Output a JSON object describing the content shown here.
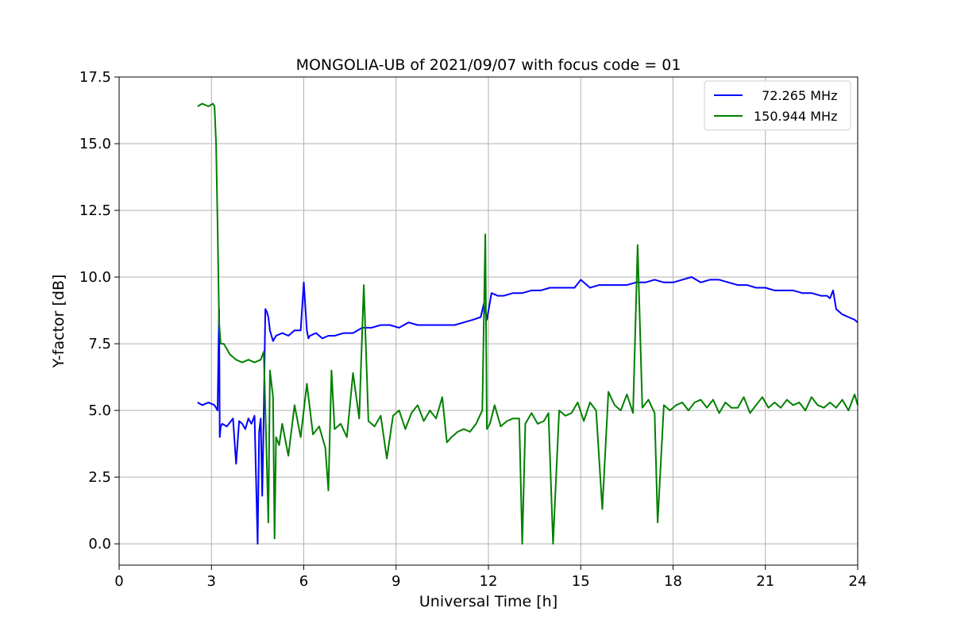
{
  "chart_data": {
    "type": "line",
    "title": "MONGOLIA-UB of 2021/09/07 with focus code = 01",
    "xlabel": "Universal Time [h]",
    "ylabel": "Y-factor [dB]",
    "xlim": [
      0,
      24
    ],
    "ylim": [
      -0.8,
      17.5
    ],
    "xticks": [
      0,
      3,
      6,
      9,
      12,
      15,
      18,
      21,
      24
    ],
    "xtick_labels": [
      "0",
      "3",
      "6",
      "9",
      "12",
      "15",
      "18",
      "21",
      "24"
    ],
    "yticks": [
      0,
      2.5,
      5,
      7.5,
      10,
      12.5,
      15,
      17.5
    ],
    "ytick_labels": [
      "0.0",
      "2.5",
      "5.0",
      "7.5",
      "10.0",
      "12.5",
      "15.0",
      "17.5"
    ],
    "grid": true,
    "legend_position": "top-right",
    "series": [
      {
        "name": "  72.265 MHz",
        "color": "#0000ff",
        "x": [
          2.55,
          2.7,
          2.9,
          3.1,
          3.2,
          3.25,
          3.27,
          3.3,
          3.35,
          3.5,
          3.7,
          3.8,
          3.9,
          4.0,
          4.1,
          4.2,
          4.3,
          4.4,
          4.5,
          4.55,
          4.6,
          4.65,
          4.7,
          4.75,
          4.8,
          4.85,
          4.9,
          5.0,
          5.1,
          5.3,
          5.5,
          5.7,
          5.9,
          6.0,
          6.1,
          6.15,
          6.2,
          6.4,
          6.6,
          6.8,
          7.0,
          7.3,
          7.6,
          7.9,
          8.2,
          8.5,
          8.8,
          9.1,
          9.4,
          9.7,
          10.0,
          10.3,
          10.6,
          10.9,
          11.2,
          11.5,
          11.75,
          11.85,
          11.95,
          12.1,
          12.3,
          12.5,
          12.8,
          13.1,
          13.4,
          13.7,
          14.0,
          14.3,
          14.6,
          14.8,
          15.0,
          15.3,
          15.6,
          15.9,
          16.2,
          16.5,
          16.8,
          17.1,
          17.4,
          17.7,
          18.0,
          18.3,
          18.6,
          18.9,
          19.2,
          19.5,
          19.8,
          20.1,
          20.4,
          20.7,
          21.0,
          21.3,
          21.6,
          21.9,
          22.2,
          22.5,
          22.8,
          23.0,
          23.1,
          23.2,
          23.3,
          23.5,
          23.7,
          23.9,
          24.0
        ],
        "y": [
          5.3,
          5.2,
          5.3,
          5.2,
          5.0,
          8.8,
          4.0,
          4.4,
          4.5,
          4.4,
          4.7,
          3.0,
          4.6,
          4.5,
          4.3,
          4.7,
          4.5,
          4.8,
          0.0,
          4.2,
          4.7,
          1.8,
          4.8,
          8.8,
          8.7,
          8.5,
          8.0,
          7.6,
          7.8,
          7.9,
          7.8,
          8.0,
          8.0,
          9.8,
          8.0,
          7.7,
          7.8,
          7.9,
          7.7,
          7.8,
          7.8,
          7.9,
          7.9,
          8.1,
          8.1,
          8.2,
          8.2,
          8.1,
          8.3,
          8.2,
          8.2,
          8.2,
          8.2,
          8.2,
          8.3,
          8.4,
          8.5,
          9.0,
          8.4,
          9.4,
          9.3,
          9.3,
          9.4,
          9.4,
          9.5,
          9.5,
          9.6,
          9.6,
          9.6,
          9.6,
          9.9,
          9.6,
          9.7,
          9.7,
          9.7,
          9.7,
          9.8,
          9.8,
          9.9,
          9.8,
          9.8,
          9.9,
          10.0,
          9.8,
          9.9,
          9.9,
          9.8,
          9.7,
          9.7,
          9.6,
          9.6,
          9.5,
          9.5,
          9.5,
          9.4,
          9.4,
          9.3,
          9.3,
          9.2,
          9.5,
          8.8,
          8.6,
          8.5,
          8.4,
          8.3
        ]
      },
      {
        "name": "150.944 MHz",
        "color": "#008000",
        "x": [
          2.55,
          2.7,
          2.9,
          3.05,
          3.1,
          3.15,
          3.2,
          3.25,
          3.3,
          3.4,
          3.6,
          3.8,
          4.0,
          4.2,
          4.4,
          4.6,
          4.7,
          4.8,
          4.85,
          4.9,
          5.0,
          5.05,
          5.1,
          5.2,
          5.3,
          5.5,
          5.7,
          5.9,
          6.1,
          6.3,
          6.5,
          6.7,
          6.8,
          6.9,
          7.0,
          7.2,
          7.4,
          7.6,
          7.8,
          7.95,
          8.1,
          8.3,
          8.5,
          8.7,
          8.9,
          9.1,
          9.3,
          9.5,
          9.7,
          9.9,
          10.1,
          10.3,
          10.5,
          10.65,
          10.8,
          11.0,
          11.2,
          11.4,
          11.6,
          11.8,
          11.9,
          11.95,
          12.05,
          12.2,
          12.4,
          12.6,
          12.8,
          13.0,
          13.1,
          13.2,
          13.4,
          13.6,
          13.8,
          13.95,
          14.1,
          14.3,
          14.5,
          14.7,
          14.9,
          15.1,
          15.3,
          15.5,
          15.7,
          15.9,
          16.1,
          16.3,
          16.5,
          16.7,
          16.85,
          17.0,
          17.2,
          17.4,
          17.5,
          17.7,
          17.9,
          18.1,
          18.3,
          18.5,
          18.7,
          18.9,
          19.1,
          19.3,
          19.5,
          19.7,
          19.9,
          20.1,
          20.3,
          20.5,
          20.7,
          20.9,
          21.1,
          21.3,
          21.5,
          21.7,
          21.9,
          22.1,
          22.3,
          22.5,
          22.7,
          22.9,
          23.1,
          23.3,
          23.5,
          23.7,
          23.9,
          24.0
        ],
        "y": [
          16.4,
          16.5,
          16.4,
          16.5,
          16.4,
          15.0,
          11.9,
          8.3,
          7.5,
          7.5,
          7.1,
          6.9,
          6.8,
          6.9,
          6.8,
          6.9,
          7.2,
          3.0,
          0.8,
          6.5,
          5.5,
          0.2,
          4.0,
          3.7,
          4.5,
          3.3,
          5.2,
          4.0,
          6.0,
          4.1,
          4.4,
          3.6,
          2.0,
          6.5,
          4.3,
          4.5,
          4.0,
          6.4,
          4.7,
          9.7,
          4.6,
          4.4,
          4.8,
          3.2,
          4.8,
          5.0,
          4.3,
          4.9,
          5.2,
          4.6,
          5.0,
          4.7,
          5.5,
          3.8,
          4.0,
          4.2,
          4.3,
          4.2,
          4.5,
          5.0,
          11.6,
          4.3,
          4.5,
          5.2,
          4.4,
          4.6,
          4.7,
          4.7,
          0.0,
          4.5,
          4.9,
          4.5,
          4.6,
          4.9,
          0.0,
          5.0,
          4.8,
          4.9,
          5.3,
          4.6,
          5.3,
          5.0,
          1.3,
          5.7,
          5.2,
          5.0,
          5.6,
          4.9,
          11.2,
          5.1,
          5.4,
          4.9,
          0.8,
          5.2,
          5.0,
          5.2,
          5.3,
          5.0,
          5.3,
          5.4,
          5.1,
          5.4,
          4.9,
          5.3,
          5.1,
          5.1,
          5.5,
          4.9,
          5.2,
          5.5,
          5.1,
          5.3,
          5.1,
          5.4,
          5.2,
          5.3,
          5.0,
          5.5,
          5.2,
          5.1,
          5.3,
          5.1,
          5.4,
          5.0,
          5.6,
          5.2
        ]
      }
    ]
  }
}
